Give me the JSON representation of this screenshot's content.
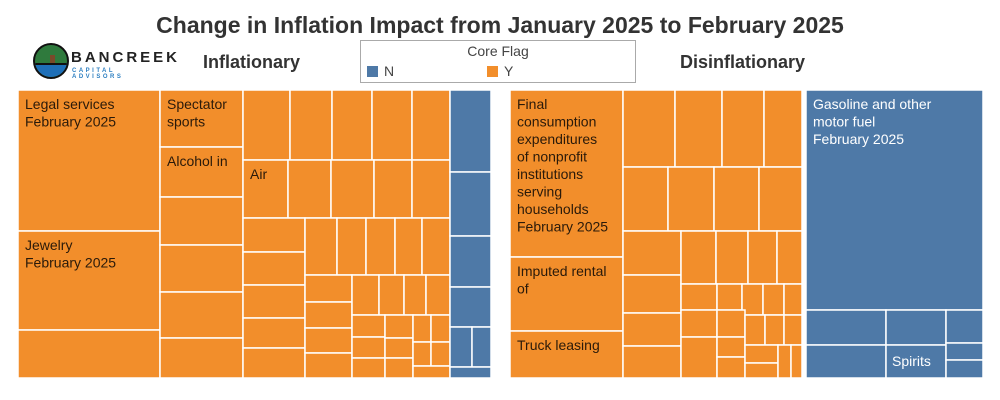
{
  "title": "Change in Inflation Impact from January 2025 to February 2025",
  "logo": {
    "name": "BANCREEK",
    "subtitle": "CAPITAL ADVISORS"
  },
  "sections": {
    "left": "Inflationary",
    "right": "Disinflationary"
  },
  "legend": {
    "title": "Core Flag",
    "items": [
      {
        "label": "N",
        "color": "#4e79a7"
      },
      {
        "label": "Y",
        "color": "#f28e2b"
      }
    ]
  },
  "chart_data": {
    "type": "treemap",
    "title": "Change in Inflation Impact from January 2025 to February 2025",
    "color_by": "Core Flag",
    "colors": {
      "N": "#4e79a7",
      "Y": "#f28e2b"
    },
    "groups": [
      {
        "name": "Inflationary",
        "labeled_items": [
          {
            "label": "Legal services\nFebruary 2025",
            "core": "Y"
          },
          {
            "label": "Jewelry\nFebruary 2025",
            "core": "Y"
          },
          {
            "label": "Spectator\nsports",
            "core": "Y"
          },
          {
            "label": "Alcohol in",
            "core": "Y"
          },
          {
            "label": "Air",
            "core": "Y"
          }
        ]
      },
      {
        "name": "Disinflationary",
        "labeled_items": [
          {
            "label": "Final\nconsumption\nexpenditures\nof nonprofit\ninstitutions\nserving\nhouseholds\nFebruary 2025",
            "core": "Y"
          },
          {
            "label": "Imputed rental\nof",
            "core": "Y"
          },
          {
            "label": "Truck leasing",
            "core": "Y"
          },
          {
            "label": "Gasoline and other\nmotor fuel\nFebruary 2025",
            "core": "N"
          },
          {
            "label": "Spirits",
            "core": "N"
          }
        ]
      }
    ]
  }
}
